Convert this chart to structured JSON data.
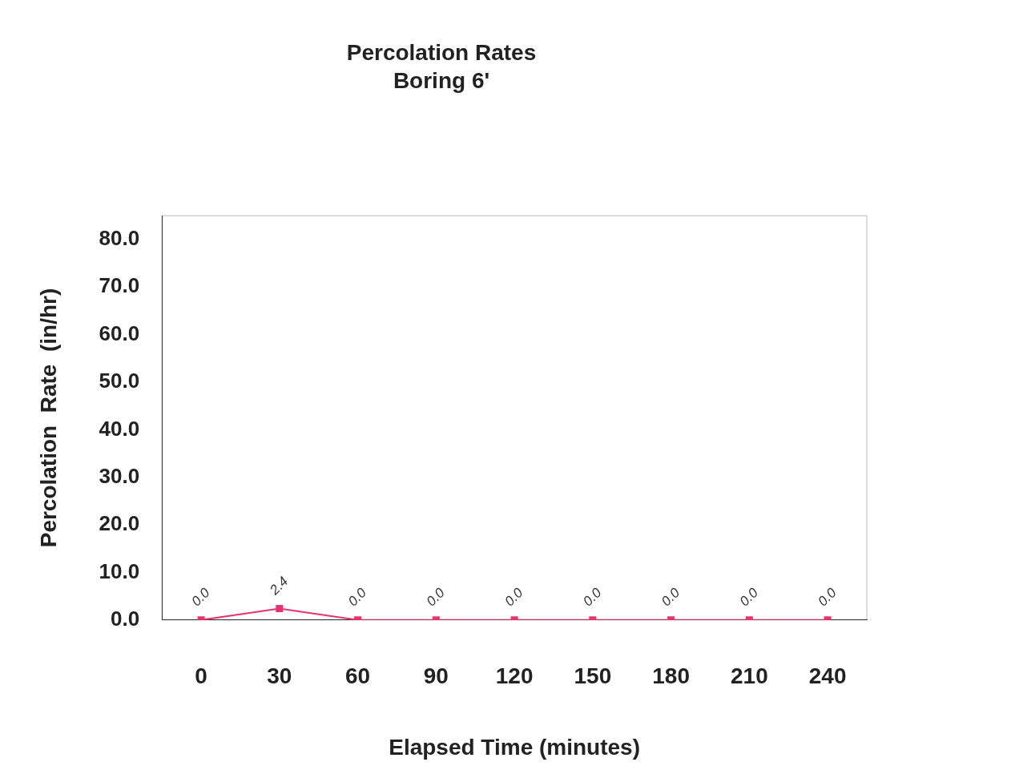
{
  "chart_data": {
    "type": "line",
    "title": "Percolation Rates",
    "subtitle": "Boring 6'",
    "xlabel": "Elapsed Time (minutes)",
    "ylabel": "Percolation  Rate  (in/hr)",
    "categories": [
      "0",
      "30",
      "60",
      "90",
      "120",
      "150",
      "180",
      "210",
      "240"
    ],
    "series": [
      {
        "color": "#e8336e",
        "values": [
          0,
          2.4,
          0,
          0,
          0,
          0,
          0,
          0,
          0
        ],
        "value_labels": [
          "0.0",
          "2.4",
          "0.0",
          "0.0",
          "0.0",
          "0.0",
          "0.0",
          "0.0",
          "0.0"
        ]
      }
    ],
    "ylim": [
      0,
      85
    ],
    "yticks": [
      {
        "value": 0,
        "label": "0.0"
      },
      {
        "value": 10,
        "label": "10.0"
      },
      {
        "value": 20,
        "label": "20.0"
      },
      {
        "value": 30,
        "label": "30.0"
      },
      {
        "value": 40,
        "label": "40.0"
      },
      {
        "value": 50,
        "label": "50.0"
      },
      {
        "value": 60,
        "label": "60.0"
      },
      {
        "value": 70,
        "label": "70.0"
      },
      {
        "value": 80,
        "label": "80.0"
      }
    ],
    "grid": false,
    "legend": false,
    "marker": "square",
    "line_style": "solid"
  }
}
